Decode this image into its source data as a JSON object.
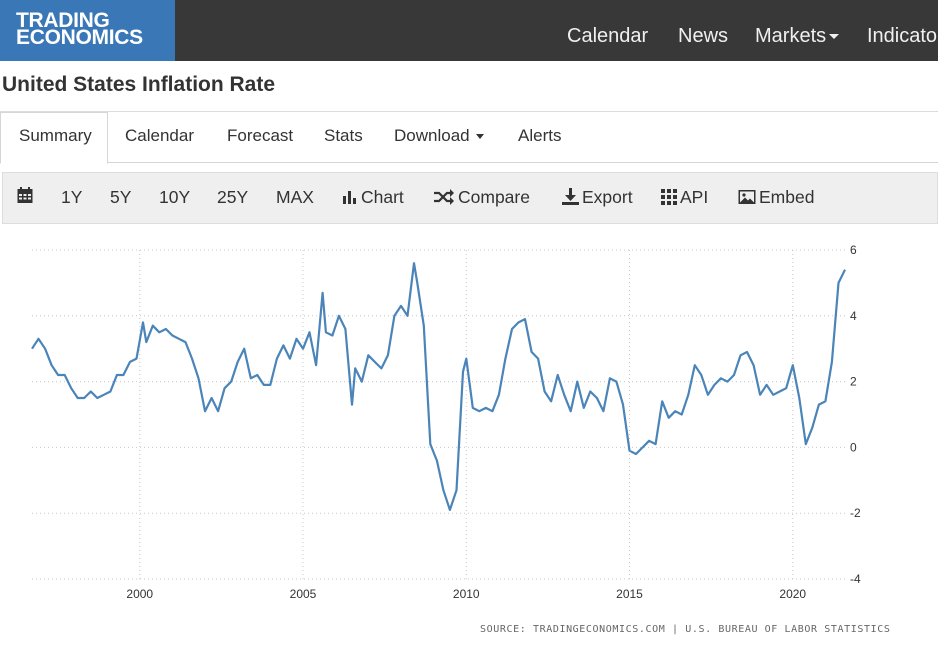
{
  "brand": {
    "line1": "TRADING",
    "line2": "ECONOMICS",
    "color": "#3a77b7"
  },
  "nav": {
    "calendar": "Calendar",
    "news": "News",
    "markets": "Markets",
    "indicators": "Indicato"
  },
  "page": {
    "title": "United States Inflation Rate"
  },
  "tabs": {
    "summary": "Summary",
    "calendar": "Calendar",
    "forecast": "Forecast",
    "stats": "Stats",
    "download": "Download",
    "alerts": "Alerts",
    "active": "Summary"
  },
  "toolbar": {
    "r1y": "1Y",
    "r5y": "5Y",
    "r10y": "10Y",
    "r25y": "25Y",
    "max": "MAX",
    "chart": "Chart",
    "compare": "Compare",
    "export": "Export",
    "api": "API",
    "embed": "Embed"
  },
  "chart_data": {
    "type": "line",
    "title": "",
    "xlabel": "",
    "ylabel": "",
    "line_color": "#4a84b8",
    "ylim": [
      -4,
      6
    ],
    "xlim": [
      1996.7,
      2021.6
    ],
    "yticks": [
      "6",
      "4",
      "2",
      "0",
      "-2",
      "-4"
    ],
    "xticks": [
      "2000",
      "2005",
      "2010",
      "2015",
      "2020"
    ],
    "grid": "dotted",
    "source": "SOURCE: TRADINGECONOMICS.COM | U.S. BUREAU OF LABOR STATISTICS",
    "x": [
      1996.7,
      1996.9,
      1997.1,
      1997.3,
      1997.5,
      1997.7,
      1997.9,
      1998.1,
      1998.3,
      1998.5,
      1998.7,
      1998.9,
      1999.1,
      1999.3,
      1999.5,
      1999.7,
      1999.9,
      2000.1,
      2000.2,
      2000.4,
      2000.6,
      2000.8,
      2001.0,
      2001.2,
      2001.4,
      2001.6,
      2001.8,
      2002.0,
      2002.2,
      2002.4,
      2002.6,
      2002.8,
      2003.0,
      2003.2,
      2003.4,
      2003.6,
      2003.8,
      2004.0,
      2004.2,
      2004.4,
      2004.6,
      2004.8,
      2005.0,
      2005.2,
      2005.4,
      2005.6,
      2005.7,
      2005.9,
      2006.1,
      2006.3,
      2006.5,
      2006.6,
      2006.8,
      2007.0,
      2007.2,
      2007.4,
      2007.6,
      2007.8,
      2008.0,
      2008.2,
      2008.4,
      2008.5,
      2008.7,
      2008.9,
      2009.1,
      2009.3,
      2009.5,
      2009.7,
      2009.9,
      2010.0,
      2010.2,
      2010.4,
      2010.6,
      2010.8,
      2011.0,
      2011.2,
      2011.4,
      2011.6,
      2011.8,
      2012.0,
      2012.2,
      2012.4,
      2012.6,
      2012.8,
      2013.0,
      2013.2,
      2013.4,
      2013.6,
      2013.8,
      2014.0,
      2014.2,
      2014.4,
      2014.6,
      2014.8,
      2015.0,
      2015.2,
      2015.4,
      2015.6,
      2015.8,
      2016.0,
      2016.2,
      2016.4,
      2016.6,
      2016.8,
      2017.0,
      2017.2,
      2017.4,
      2017.6,
      2017.8,
      2018.0,
      2018.2,
      2018.4,
      2018.6,
      2018.8,
      2019.0,
      2019.2,
      2019.4,
      2019.6,
      2019.8,
      2020.0,
      2020.2,
      2020.4,
      2020.6,
      2020.8,
      2021.0,
      2021.2,
      2021.4,
      2021.6
    ],
    "values": [
      3.0,
      3.3,
      3.0,
      2.5,
      2.2,
      2.2,
      1.8,
      1.5,
      1.5,
      1.7,
      1.5,
      1.6,
      1.7,
      2.2,
      2.2,
      2.6,
      2.7,
      3.8,
      3.2,
      3.7,
      3.5,
      3.6,
      3.4,
      3.3,
      3.2,
      2.7,
      2.1,
      1.1,
      1.5,
      1.1,
      1.8,
      2.0,
      2.6,
      3.0,
      2.1,
      2.2,
      1.9,
      1.9,
      2.7,
      3.1,
      2.7,
      3.3,
      3.0,
      3.5,
      2.5,
      4.7,
      3.5,
      3.4,
      4.0,
      3.6,
      1.3,
      2.4,
      2.0,
      2.8,
      2.6,
      2.4,
      2.8,
      4.0,
      4.3,
      4.0,
      5.6,
      5.0,
      3.7,
      0.1,
      -0.4,
      -1.3,
      -1.9,
      -1.3,
      2.3,
      2.7,
      1.2,
      1.1,
      1.2,
      1.1,
      1.6,
      2.7,
      3.6,
      3.8,
      3.9,
      2.9,
      2.7,
      1.7,
      1.4,
      2.2,
      1.6,
      1.1,
      2.0,
      1.2,
      1.7,
      1.5,
      1.1,
      2.1,
      2.0,
      1.3,
      -0.1,
      -0.2,
      0.0,
      0.2,
      0.1,
      1.4,
      0.9,
      1.1,
      1.0,
      1.6,
      2.5,
      2.2,
      1.6,
      1.9,
      2.1,
      2.0,
      2.2,
      2.8,
      2.9,
      2.5,
      1.6,
      1.9,
      1.6,
      1.7,
      1.8,
      2.5,
      1.5,
      0.1,
      0.6,
      1.3,
      1.4,
      2.6,
      5.0,
      5.4
    ]
  }
}
